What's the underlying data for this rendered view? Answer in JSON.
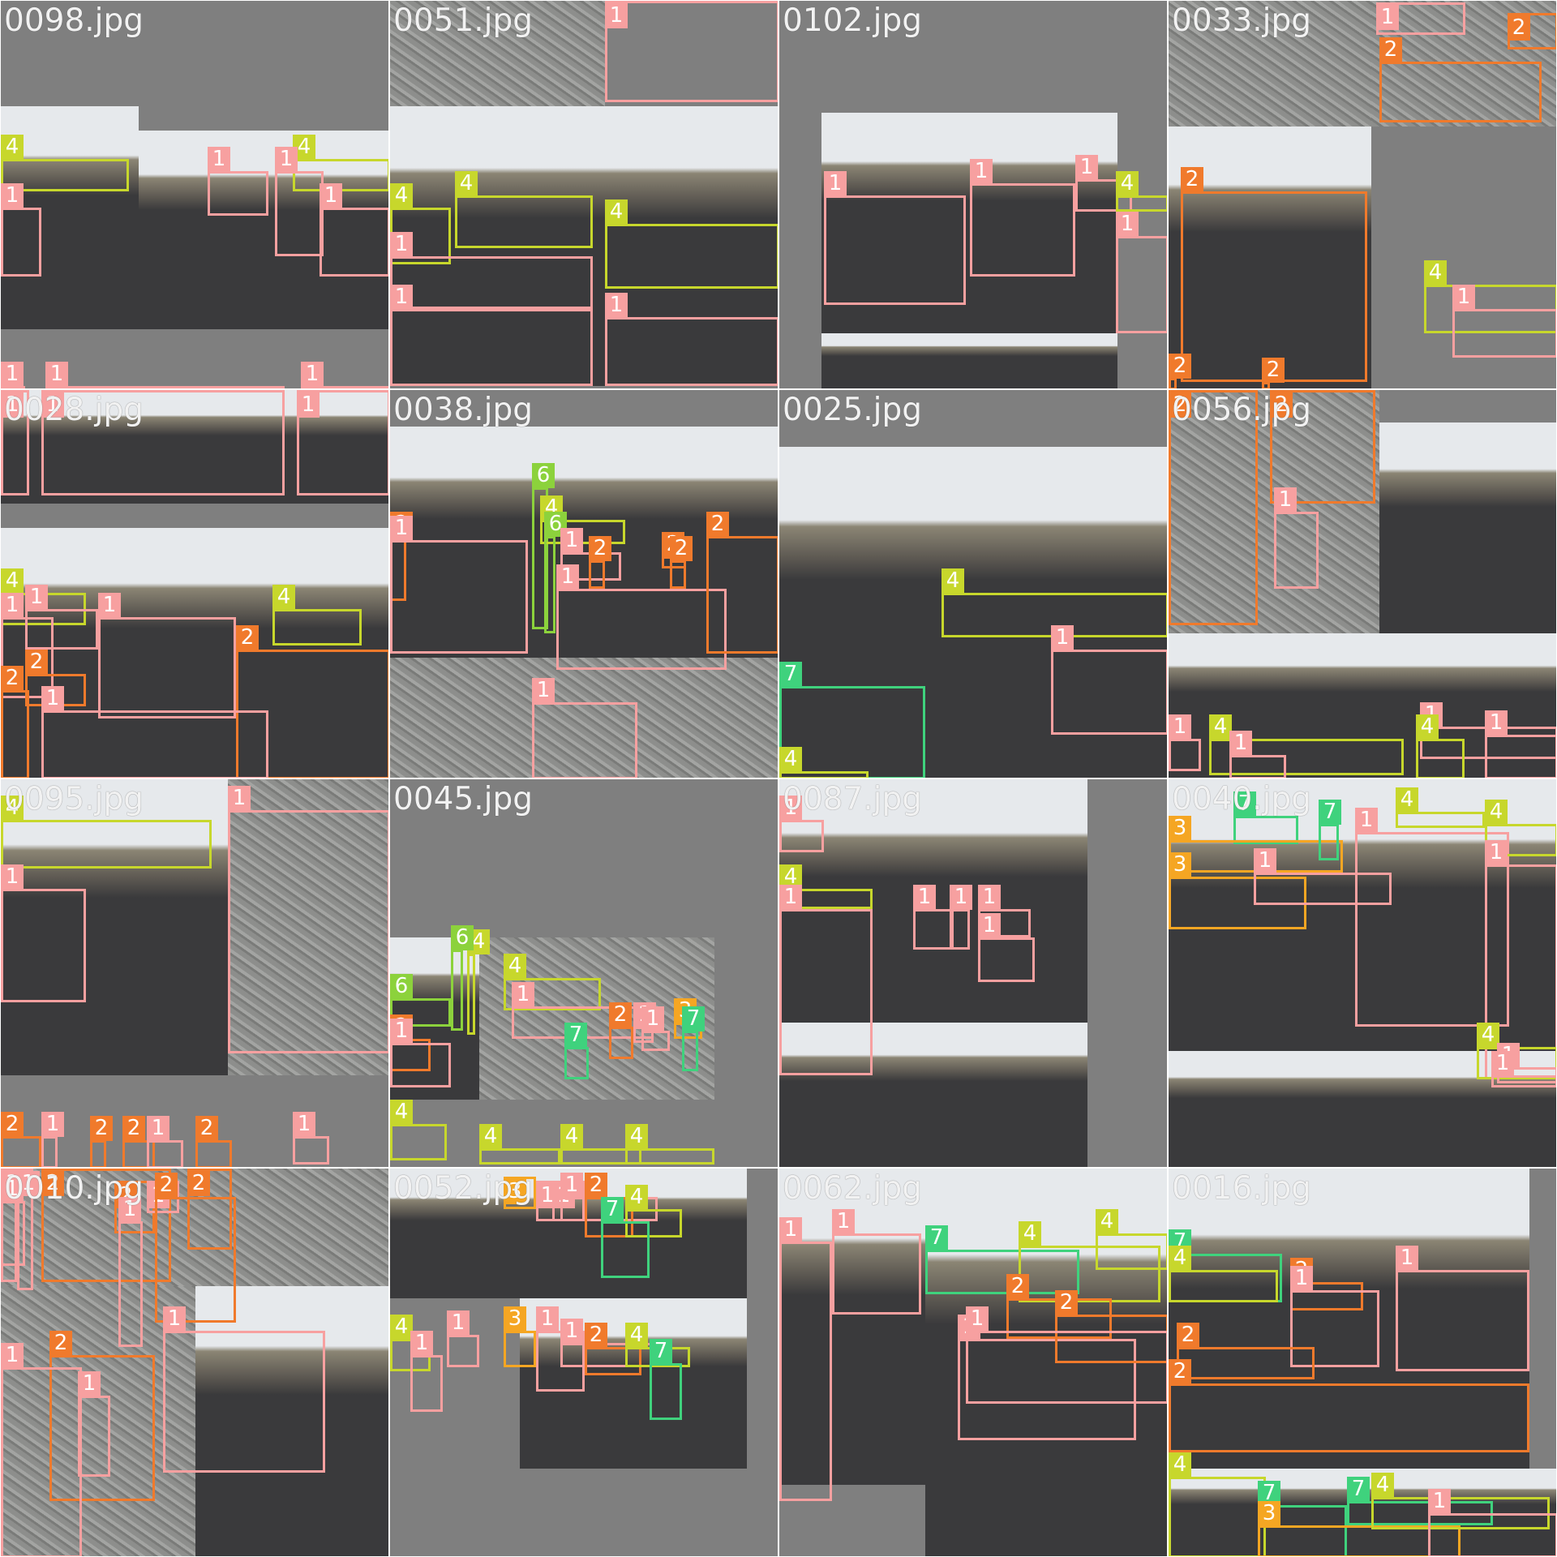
{
  "colors": {
    "class_1": "#f7a0a0",
    "class_2": "#f07a2c",
    "class_3": "#f5a623",
    "class_4": "#c7d72c",
    "class_6": "#8cd23c",
    "class_7": "#3fd27d",
    "pad": "#7f7f7f",
    "soil": "#3a3a3c",
    "rock": "#8d8e8c",
    "sky": "#e6e9ec"
  },
  "tiles": [
    {
      "title": "0098.jpg",
      "scenes": [
        {
          "kind": "soil"
        },
        {
          "kind": "soil"
        }
      ],
      "boxes": [
        {
          "label": "4"
        },
        {
          "label": "1"
        },
        {
          "label": "1"
        },
        {
          "label": "4"
        },
        {
          "label": "1"
        },
        {
          "label": "1"
        },
        {
          "label": "1"
        },
        {
          "label": "1"
        },
        {
          "label": "1"
        }
      ]
    },
    {
      "title": "0051.jpg",
      "scenes": [
        {
          "kind": "rock"
        },
        {
          "kind": "soil"
        },
        {
          "kind": "soil"
        }
      ],
      "boxes": [
        {
          "label": "1"
        },
        {
          "label": "4"
        },
        {
          "label": "4"
        },
        {
          "label": "1"
        },
        {
          "label": "4"
        },
        {
          "label": "1"
        },
        {
          "label": "1"
        }
      ]
    },
    {
      "title": "0102.jpg",
      "scenes": [
        {
          "kind": "soil"
        },
        {
          "kind": "soil"
        }
      ],
      "boxes": [
        {
          "label": "1"
        },
        {
          "label": "1"
        },
        {
          "label": "1"
        },
        {
          "label": "4"
        },
        {
          "label": "1"
        }
      ]
    },
    {
      "title": "0033.jpg",
      "scenes": [
        {
          "kind": "rock"
        },
        {
          "kind": "rock"
        },
        {
          "kind": "soil"
        }
      ],
      "boxes": [
        {
          "label": "1"
        },
        {
          "label": "2"
        },
        {
          "label": "2"
        },
        {
          "label": "2"
        },
        {
          "label": "4"
        },
        {
          "label": "1"
        },
        {
          "label": "2"
        },
        {
          "label": "2"
        }
      ]
    },
    {
      "title": "0028.jpg",
      "scenes": [
        {
          "kind": "soil"
        },
        {
          "kind": "soil"
        }
      ],
      "boxes": [
        {
          "label": "1"
        },
        {
          "label": "1"
        },
        {
          "label": "1"
        },
        {
          "label": "4"
        },
        {
          "label": "1"
        },
        {
          "label": "1"
        },
        {
          "label": "1"
        },
        {
          "label": "4"
        },
        {
          "label": "2"
        },
        {
          "label": "2"
        },
        {
          "label": "2"
        },
        {
          "label": "1"
        }
      ]
    },
    {
      "title": "0038.jpg",
      "scenes": [
        {
          "kind": "soil"
        },
        {
          "kind": "soil"
        },
        {
          "kind": "rock"
        }
      ],
      "boxes": [
        {
          "label": "6"
        },
        {
          "label": "4"
        },
        {
          "label": "6"
        },
        {
          "label": "2"
        },
        {
          "label": "1"
        },
        {
          "label": "1"
        },
        {
          "label": "2"
        },
        {
          "label": "1"
        },
        {
          "label": "2"
        },
        {
          "label": "2"
        },
        {
          "label": "2"
        },
        {
          "label": "1"
        }
      ]
    },
    {
      "title": "0025.jpg",
      "scenes": [
        {
          "kind": "soil"
        },
        {
          "kind": "soil"
        }
      ],
      "boxes": [
        {
          "label": "4"
        },
        {
          "label": "1"
        },
        {
          "label": "7"
        },
        {
          "label": "4"
        }
      ]
    },
    {
      "title": "0056.jpg",
      "scenes": [
        {
          "kind": "rock"
        },
        {
          "kind": "soil"
        },
        {
          "kind": "soil"
        }
      ],
      "boxes": [
        {
          "label": "2"
        },
        {
          "label": "2"
        },
        {
          "label": "1"
        },
        {
          "label": "1"
        },
        {
          "label": "4"
        },
        {
          "label": "1"
        },
        {
          "label": "1"
        },
        {
          "label": "4"
        },
        {
          "label": "1"
        }
      ]
    },
    {
      "title": "0095.jpg",
      "scenes": [
        {
          "kind": "soil"
        },
        {
          "kind": "rock"
        }
      ],
      "boxes": [
        {
          "label": "4"
        },
        {
          "label": "1"
        },
        {
          "label": "1"
        },
        {
          "label": "2"
        },
        {
          "label": "1"
        },
        {
          "label": "2"
        },
        {
          "label": "2"
        },
        {
          "label": "1"
        },
        {
          "label": "2"
        },
        {
          "label": "1"
        }
      ]
    },
    {
      "title": "0045.jpg",
      "scenes": [
        {
          "kind": "soil"
        },
        {
          "kind": "rock"
        }
      ],
      "boxes": [
        {
          "label": "6"
        },
        {
          "label": "4"
        },
        {
          "label": "6"
        },
        {
          "label": "2"
        },
        {
          "label": "1"
        },
        {
          "label": "4"
        },
        {
          "label": "1"
        },
        {
          "label": "7"
        },
        {
          "label": "2"
        },
        {
          "label": "1"
        },
        {
          "label": "1"
        },
        {
          "label": "3"
        },
        {
          "label": "7"
        },
        {
          "label": "4"
        },
        {
          "label": "4"
        },
        {
          "label": "4"
        },
        {
          "label": "4"
        }
      ]
    },
    {
      "title": "0087.jpg",
      "scenes": [
        {
          "kind": "soil"
        },
        {
          "kind": "soil"
        }
      ],
      "boxes": [
        {
          "label": "1"
        },
        {
          "label": "4"
        },
        {
          "label": "1"
        },
        {
          "label": "1"
        },
        {
          "label": "1"
        },
        {
          "label": "1"
        },
        {
          "label": "1"
        }
      ]
    },
    {
      "title": "0040.jpg",
      "scenes": [
        {
          "kind": "soil"
        },
        {
          "kind": "soil"
        },
        {
          "kind": "soil"
        }
      ],
      "boxes": [
        {
          "label": "7"
        },
        {
          "label": "3"
        },
        {
          "label": "7"
        },
        {
          "label": "3"
        },
        {
          "label": "1"
        },
        {
          "label": "1"
        },
        {
          "label": "4"
        },
        {
          "label": "4"
        },
        {
          "label": "1"
        },
        {
          "label": "4"
        },
        {
          "label": "1"
        },
        {
          "label": "1"
        }
      ]
    },
    {
      "title": "0010.jpg",
      "scenes": [
        {
          "kind": "rock"
        },
        {
          "kind": "rock"
        },
        {
          "kind": "soil"
        }
      ],
      "boxes": [
        {
          "label": "1"
        },
        {
          "label": "1"
        },
        {
          "label": "1"
        },
        {
          "label": "2"
        },
        {
          "label": "2"
        },
        {
          "label": "1"
        },
        {
          "label": "2"
        },
        {
          "label": "1"
        },
        {
          "label": "2"
        },
        {
          "label": "2"
        },
        {
          "label": "1"
        },
        {
          "label": "1"
        },
        {
          "label": "1"
        }
      ]
    },
    {
      "title": "0052.jpg",
      "scenes": [
        {
          "kind": "soil"
        },
        {
          "kind": "soil"
        },
        {
          "kind": "soil"
        }
      ],
      "boxes": [
        {
          "label": "3"
        },
        {
          "label": "1"
        },
        {
          "label": "1"
        },
        {
          "label": "1"
        },
        {
          "label": "2"
        },
        {
          "label": "4"
        },
        {
          "label": "7"
        },
        {
          "label": "4"
        },
        {
          "label": "1"
        },
        {
          "label": "1"
        },
        {
          "label": "3"
        },
        {
          "label": "1"
        },
        {
          "label": "1"
        },
        {
          "label": "2"
        },
        {
          "label": "4"
        },
        {
          "label": "7"
        }
      ]
    },
    {
      "title": "0062.jpg",
      "scenes": [
        {
          "kind": "soil"
        },
        {
          "kind": "soil"
        }
      ],
      "boxes": [
        {
          "label": "1"
        },
        {
          "label": "1"
        },
        {
          "label": "7"
        },
        {
          "label": "4"
        },
        {
          "label": "4"
        },
        {
          "label": "1"
        },
        {
          "label": "2"
        },
        {
          "label": "2"
        },
        {
          "label": "1"
        }
      ]
    },
    {
      "title": "0016.jpg",
      "scenes": [
        {
          "kind": "soil"
        },
        {
          "kind": "soil"
        }
      ],
      "boxes": [
        {
          "label": "7"
        },
        {
          "label": "4"
        },
        {
          "label": "2"
        },
        {
          "label": "1"
        },
        {
          "label": "1"
        },
        {
          "label": "2"
        },
        {
          "label": "2"
        },
        {
          "label": "4"
        },
        {
          "label": "7"
        },
        {
          "label": "3"
        },
        {
          "label": "7"
        },
        {
          "label": "4"
        },
        {
          "label": "1"
        }
      ]
    }
  ]
}
